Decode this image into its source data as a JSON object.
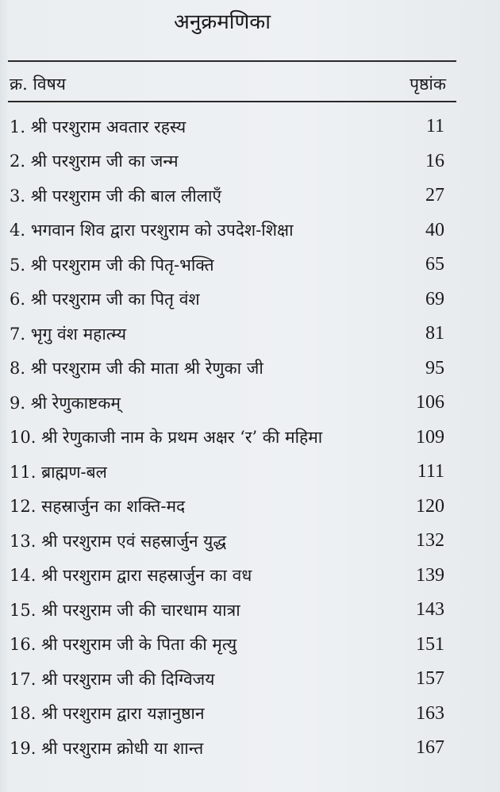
{
  "title": "अनुक्रमणिका",
  "header": {
    "serial_label": "क्र. विषय",
    "page_label": "पृष्ठांक"
  },
  "entries": [
    {
      "title": "1. श्री परशुराम अवतार रहस्य",
      "page": "11"
    },
    {
      "title": "2. श्री परशुराम जी का जन्म",
      "page": "16"
    },
    {
      "title": "3. श्री परशुराम जी की बाल लीलाएँ",
      "page": "27"
    },
    {
      "title": "4. भगवान शिव द्वारा परशुराम को उपदेश-शिक्षा",
      "page": "40"
    },
    {
      "title": "5. श्री परशुराम जी की पितृ-भक्ति",
      "page": "65"
    },
    {
      "title": "6. श्री परशुराम जी का पितृ वंश",
      "page": "69"
    },
    {
      "title": "7. भृगु वंश महात्म्य",
      "page": "81"
    },
    {
      "title": "8. श्री परशुराम जी की माता श्री रेणुका जी",
      "page": "95"
    },
    {
      "title": "9. श्री रेणुकाष्टकम्",
      "page": "106"
    },
    {
      "title": "10. श्री रेणुकाजी नाम के प्रथम अक्षर ‘र’ की महिमा",
      "page": "109"
    },
    {
      "title": "11. ब्राह्मण-बल",
      "page": "111"
    },
    {
      "title": "12. सहस्रार्जुन का शक्ति-मद",
      "page": "120"
    },
    {
      "title": "13. श्री परशुराम एवं सहस्रार्जुन युद्ध",
      "page": "132"
    },
    {
      "title": "14. श्री परशुराम द्वारा सहस्रार्जुन का वध",
      "page": "139"
    },
    {
      "title": "15. श्री परशुराम जी की चारधाम यात्रा",
      "page": "143"
    },
    {
      "title": "16. श्री परशुराम जी के पिता की मृत्यु",
      "page": "151"
    },
    {
      "title": "17. श्री परशुराम जी की दिग्विजय",
      "page": "157"
    },
    {
      "title": "18. श्री परशुराम द्वारा यज्ञानुष्ठान",
      "page": "163"
    },
    {
      "title": "19. श्री परशुराम क्रोधी या शान्त",
      "page": "167"
    }
  ]
}
